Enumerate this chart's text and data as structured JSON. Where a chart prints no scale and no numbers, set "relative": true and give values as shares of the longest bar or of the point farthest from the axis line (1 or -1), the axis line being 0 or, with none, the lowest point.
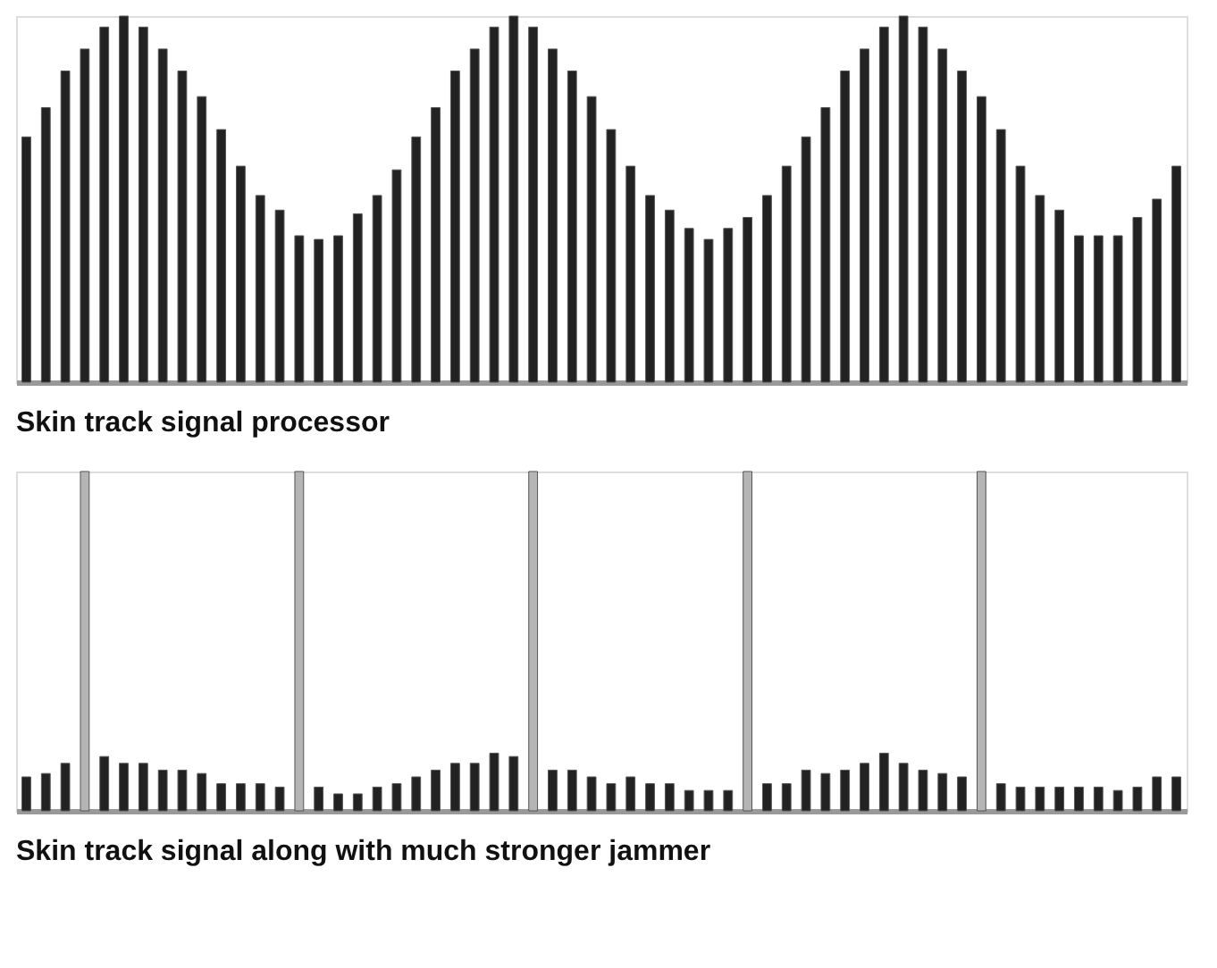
{
  "chart_data": [
    {
      "type": "bar",
      "title": "Skin track signal processor",
      "relative": true,
      "tick_labels": false,
      "categories": [
        null,
        null,
        null,
        null,
        null,
        null,
        null,
        null,
        null,
        null,
        null,
        null,
        null,
        null,
        null,
        null,
        null,
        null,
        null,
        null,
        null,
        null,
        null,
        null,
        null,
        null,
        null,
        null,
        null,
        null,
        null,
        null,
        null,
        null,
        null,
        null,
        null,
        null,
        null,
        null,
        null,
        null,
        null,
        null,
        null,
        null,
        null,
        null,
        null,
        null,
        null,
        null,
        null,
        null,
        null,
        null,
        null,
        null,
        null,
        null
      ],
      "values": [
        0.67,
        0.75,
        0.85,
        0.91,
        0.97,
        1,
        0.97,
        0.91,
        0.85,
        0.78,
        0.69,
        0.59,
        0.51,
        0.47,
        0.4,
        0.39,
        0.4,
        0.46,
        0.51,
        0.58,
        0.67,
        0.75,
        0.85,
        0.91,
        0.97,
        1,
        0.97,
        0.91,
        0.85,
        0.78,
        0.69,
        0.59,
        0.51,
        0.47,
        0.42,
        0.39,
        0.42,
        0.45,
        0.51,
        0.59,
        0.67,
        0.75,
        0.85,
        0.91,
        0.97,
        1,
        0.97,
        0.91,
        0.85,
        0.78,
        0.69,
        0.59,
        0.51,
        0.47,
        0.4,
        0.4,
        0.4,
        0.45,
        0.5,
        0.59
      ],
      "color": "#222222"
    },
    {
      "type": "bar",
      "title": "Skin track signal along with much stronger jammer",
      "relative": true,
      "tick_labels": false,
      "categories": [
        null,
        null,
        null,
        null,
        null,
        null,
        null,
        null,
        null,
        null,
        null,
        null,
        null,
        null,
        null,
        null,
        null,
        null,
        null,
        null,
        null,
        null,
        null,
        null,
        null,
        null,
        null,
        null,
        null,
        null,
        null,
        null,
        null,
        null,
        null,
        null,
        null,
        null,
        null,
        null,
        null,
        null,
        null,
        null,
        null,
        null,
        null,
        null,
        null,
        null,
        null,
        null,
        null,
        null,
        null,
        null,
        null,
        null,
        null,
        null
      ],
      "values": [
        0.1,
        0.11,
        0.14,
        1,
        0.16,
        0.14,
        0.14,
        0.12,
        0.12,
        0.11,
        0.08,
        0.08,
        0.08,
        0.07,
        1,
        0.07,
        0.05,
        0.05,
        0.07,
        0.08,
        0.1,
        0.12,
        0.14,
        0.14,
        0.17,
        0.16,
        1,
        0.12,
        0.12,
        0.1,
        0.08,
        0.1,
        0.08,
        0.08,
        0.06,
        0.06,
        0.06,
        1,
        0.08,
        0.08,
        0.12,
        0.11,
        0.12,
        0.14,
        0.17,
        0.14,
        0.12,
        0.11,
        0.1,
        1,
        0.08,
        0.07,
        0.07,
        0.07,
        0.07,
        0.07,
        0.06,
        0.07,
        0.1,
        0.1
      ],
      "colors": [
        "#222222",
        "#222222",
        "#222222",
        "#b5b5b5",
        "#222222",
        "#222222",
        "#222222",
        "#222222",
        "#222222",
        "#222222",
        "#222222",
        "#222222",
        "#222222",
        "#222222",
        "#b5b5b5",
        "#222222",
        "#222222",
        "#222222",
        "#222222",
        "#222222",
        "#222222",
        "#222222",
        "#222222",
        "#222222",
        "#222222",
        "#222222",
        "#b5b5b5",
        "#222222",
        "#222222",
        "#222222",
        "#222222",
        "#222222",
        "#222222",
        "#222222",
        "#222222",
        "#222222",
        "#222222",
        "#b5b5b5",
        "#222222",
        "#222222",
        "#222222",
        "#222222",
        "#222222",
        "#222222",
        "#222222",
        "#222222",
        "#222222",
        "#222222",
        "#222222",
        "#b5b5b5",
        "#222222",
        "#222222",
        "#222222",
        "#222222",
        "#222222",
        "#222222",
        "#222222",
        "#222222",
        "#222222",
        "#222222"
      ]
    }
  ]
}
